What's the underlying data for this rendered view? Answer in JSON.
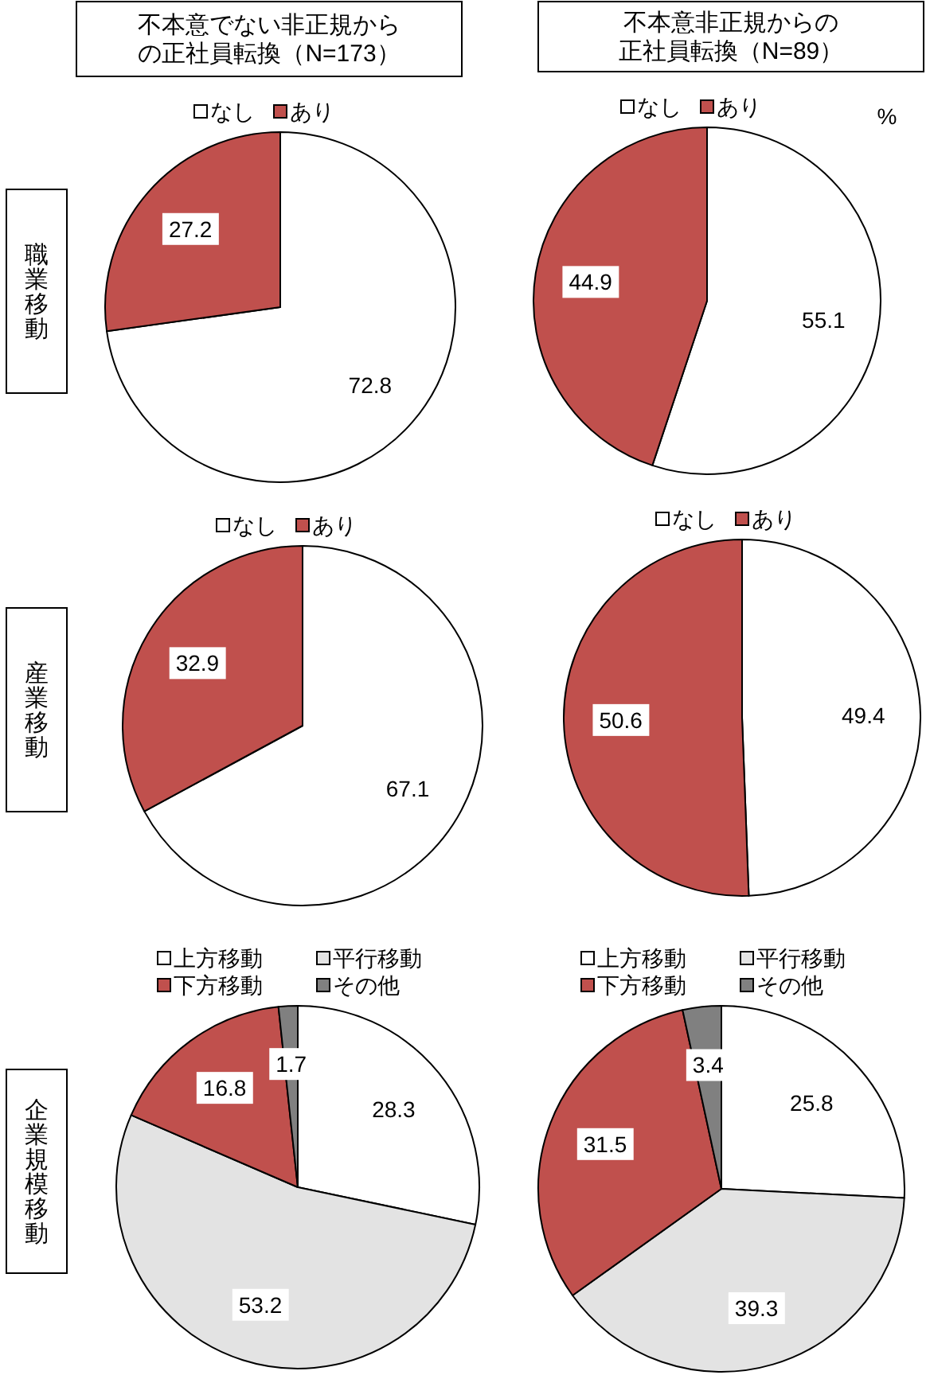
{
  "chart_data": [
    {
      "type": "pie",
      "title": "不本意でない非正規からの正社員転換（N=173）",
      "ylabel": "職業移動",
      "categories": [
        "なし",
        "あり"
      ],
      "values": [
        72.8,
        27.2
      ],
      "colors": [
        "#ffffff",
        "#c0504d"
      ],
      "data_labels": true,
      "legend": "top"
    },
    {
      "type": "pie",
      "title": "不本意非正規からの正社員転換（N=89）",
      "categories": [
        "なし",
        "あり"
      ],
      "values": [
        55.1,
        44.9
      ],
      "colors": [
        "#ffffff",
        "#c0504d"
      ],
      "data_labels": true,
      "legend": "top",
      "annotations": [
        "%"
      ]
    },
    {
      "type": "pie",
      "ylabel": "産業移動",
      "categories": [
        "なし",
        "あり"
      ],
      "values": [
        67.1,
        32.9
      ],
      "colors": [
        "#ffffff",
        "#c0504d"
      ],
      "data_labels": true,
      "legend": "top"
    },
    {
      "type": "pie",
      "categories": [
        "なし",
        "あり"
      ],
      "values": [
        49.4,
        50.6
      ],
      "colors": [
        "#ffffff",
        "#c0504d"
      ],
      "data_labels": true,
      "legend": "top"
    },
    {
      "type": "pie",
      "ylabel": "企業規模移動",
      "categories": [
        "上方移動",
        "平行移動",
        "下方移動",
        "その他"
      ],
      "values": [
        28.3,
        53.2,
        16.8,
        1.7
      ],
      "colors": [
        "#ffffff",
        "#e3e3e3",
        "#c0504d",
        "#808080"
      ],
      "data_labels": true,
      "legend": "top"
    },
    {
      "type": "pie",
      "categories": [
        "上方移動",
        "平行移動",
        "下方移動",
        "その他"
      ],
      "values": [
        25.8,
        39.3,
        31.5,
        3.4
      ],
      "colors": [
        "#ffffff",
        "#e3e3e3",
        "#c0504d",
        "#808080"
      ],
      "data_labels": true,
      "legend": "top"
    }
  ]
}
